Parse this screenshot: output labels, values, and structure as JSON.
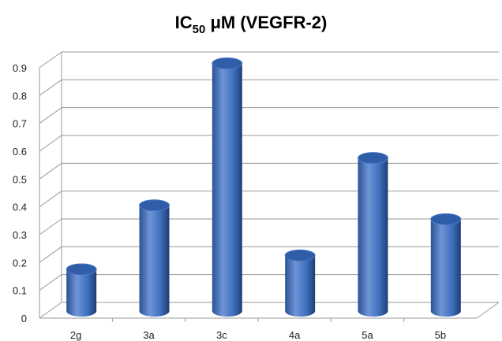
{
  "chart_data": {
    "type": "bar",
    "title": {
      "main": "IC",
      "subscript": "50",
      "rest": " μM (VEGFR-2)"
    },
    "xlabel": "",
    "ylabel": "",
    "categories": [
      "2g",
      "3a",
      "3c",
      "4a",
      "5a",
      "5b"
    ],
    "values": [
      0.15,
      0.38,
      0.89,
      0.2,
      0.55,
      0.33
    ],
    "ylim": [
      0,
      0.9
    ],
    "yticks": [
      "0",
      "0.1",
      "0.2",
      "0.3",
      "0.4",
      "0.5",
      "0.6",
      "0.7",
      "0.8",
      "0.9"
    ],
    "grid": true,
    "legend": "none",
    "style": "3d-cylinder",
    "colors": {
      "bar_light": "#6f95d6",
      "bar_mid": "#3f6fc0",
      "bar_dark": "#23487f",
      "bar_top": "#2f5da8",
      "grid": "#9a9a9a"
    }
  }
}
